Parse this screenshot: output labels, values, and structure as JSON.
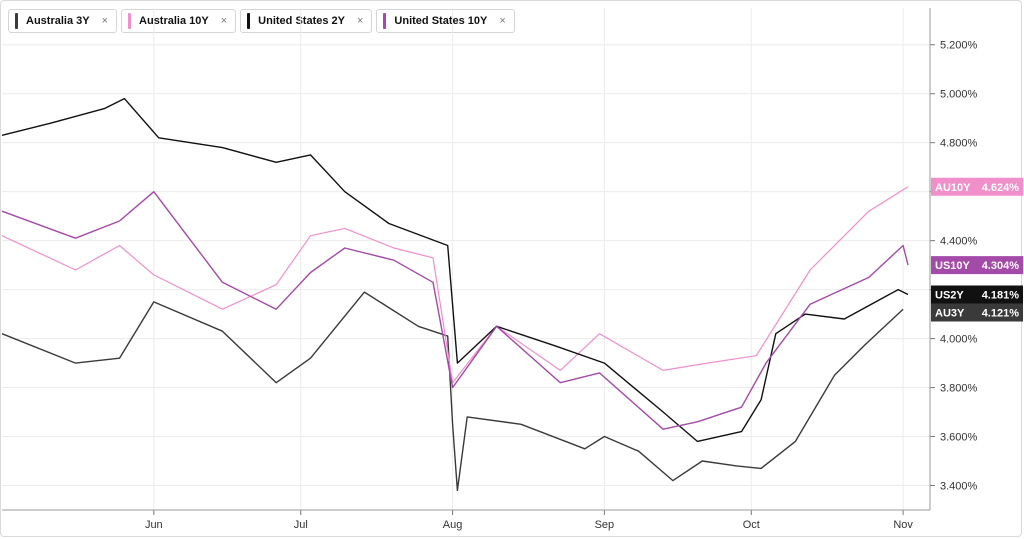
{
  "legend": [
    {
      "label": "Australia 3Y",
      "close": "×",
      "color": "#3a3a3a"
    },
    {
      "label": "Australia 10Y",
      "close": "×",
      "color": "#f08fc9"
    },
    {
      "label": "United States 2Y",
      "close": "×",
      "color": "#111111"
    },
    {
      "label": "United States 10Y",
      "close": "×",
      "color": "#a44aa8"
    }
  ],
  "chart_data": {
    "type": "line",
    "x_ticks": [
      "Jun",
      "Jul",
      "Aug",
      "Sep",
      "Oct",
      "Nov"
    ],
    "y_ticks": [
      "3.400%",
      "3.600%",
      "3.800%",
      "4.000%",
      "4.200%",
      "4.400%",
      "4.600%",
      "4.800%",
      "5.000%",
      "5.200%"
    ],
    "ylim": [
      3.3,
      5.35
    ],
    "grid": true,
    "y_axis_side": "right",
    "legend_position": "top-left",
    "series": [
      {
        "name": "Australia 3Y",
        "badge": "AU3Y",
        "last_value_label": "4.121%",
        "color": "#3a3a3a",
        "dates": [
          "2023-05-01",
          "2023-05-16",
          "2023-05-25",
          "2023-06-01",
          "2023-06-15",
          "2023-06-26",
          "2023-07-03",
          "2023-07-14",
          "2023-07-25",
          "2023-07-31",
          "2023-08-01",
          "2023-08-02",
          "2023-08-04",
          "2023-08-15",
          "2023-08-28",
          "2023-09-01",
          "2023-09-08",
          "2023-09-15",
          "2023-09-21",
          "2023-09-28",
          "2023-10-03",
          "2023-10-10",
          "2023-10-18",
          "2023-10-24",
          "2023-11-01"
        ],
        "values": [
          4.02,
          3.9,
          3.92,
          4.15,
          4.03,
          3.82,
          3.92,
          4.19,
          4.05,
          4.01,
          3.65,
          3.38,
          3.68,
          3.65,
          3.55,
          3.6,
          3.54,
          3.42,
          3.5,
          3.48,
          3.47,
          3.58,
          3.85,
          3.97,
          4.12
        ]
      },
      {
        "name": "Australia 10Y",
        "badge": "AU10Y",
        "last_value_label": "4.624%",
        "color": "#f08fc9",
        "dates": [
          "2023-05-01",
          "2023-05-16",
          "2023-05-25",
          "2023-06-01",
          "2023-06-15",
          "2023-06-26",
          "2023-07-03",
          "2023-07-10",
          "2023-07-20",
          "2023-07-28",
          "2023-08-01",
          "2023-08-10",
          "2023-08-23",
          "2023-08-31",
          "2023-09-13",
          "2023-09-22",
          "2023-10-02",
          "2023-10-13",
          "2023-10-25",
          "2023-11-02"
        ],
        "values": [
          4.42,
          4.28,
          4.38,
          4.26,
          4.12,
          4.22,
          4.42,
          4.45,
          4.37,
          4.33,
          3.82,
          4.05,
          3.87,
          4.02,
          3.87,
          3.9,
          3.93,
          4.28,
          4.52,
          4.62
        ]
      },
      {
        "name": "United States 2Y",
        "badge": "US2Y",
        "last_value_label": "4.181%",
        "color": "#111111",
        "dates": [
          "2023-05-01",
          "2023-05-11",
          "2023-05-22",
          "2023-05-26",
          "2023-06-02",
          "2023-06-15",
          "2023-06-26",
          "2023-07-03",
          "2023-07-10",
          "2023-07-19",
          "2023-07-31",
          "2023-08-02",
          "2023-08-10",
          "2023-08-22",
          "2023-09-01",
          "2023-09-13",
          "2023-09-20",
          "2023-09-29",
          "2023-10-03",
          "2023-10-06",
          "2023-10-12",
          "2023-10-20",
          "2023-10-31",
          "2023-11-02"
        ],
        "values": [
          4.83,
          4.88,
          4.94,
          4.98,
          4.82,
          4.78,
          4.72,
          4.75,
          4.6,
          4.47,
          4.38,
          3.9,
          4.05,
          3.97,
          3.9,
          3.7,
          3.58,
          3.62,
          3.75,
          4.02,
          4.1,
          4.08,
          4.2,
          4.18
        ]
      },
      {
        "name": "United States 10Y",
        "badge": "US10Y",
        "last_value_label": "4.304%",
        "color": "#a44aa8",
        "dates": [
          "2023-05-01",
          "2023-05-16",
          "2023-05-25",
          "2023-06-01",
          "2023-06-15",
          "2023-06-26",
          "2023-07-03",
          "2023-07-10",
          "2023-07-20",
          "2023-07-28",
          "2023-08-01",
          "2023-08-10",
          "2023-08-23",
          "2023-08-31",
          "2023-09-13",
          "2023-09-20",
          "2023-09-29",
          "2023-10-04",
          "2023-10-13",
          "2023-10-25",
          "2023-11-01",
          "2023-11-02"
        ],
        "values": [
          4.52,
          4.41,
          4.48,
          4.6,
          4.23,
          4.12,
          4.27,
          4.37,
          4.32,
          4.23,
          3.8,
          4.05,
          3.82,
          3.86,
          3.63,
          3.66,
          3.72,
          3.9,
          4.14,
          4.25,
          4.38,
          4.3
        ]
      }
    ]
  }
}
